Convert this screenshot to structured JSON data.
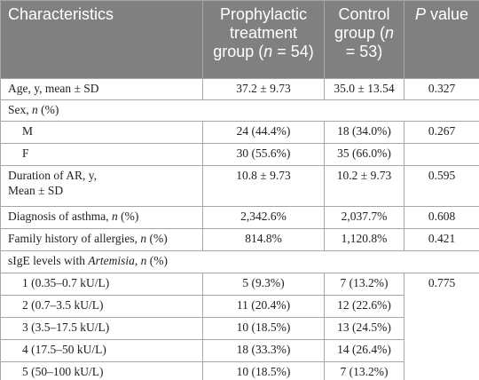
{
  "table": {
    "header": {
      "characteristics": "Characteristics",
      "prophylactic": [
        "Prophylactic treatment group (",
        "n",
        " = 54)"
      ],
      "control": [
        "Control group (",
        "n",
        " = 53)"
      ],
      "p_value": [
        "P",
        " value"
      ]
    },
    "rows": [
      {
        "label": [
          "Age, y, mean ± SD"
        ],
        "prophylactic": "37.2 ± 9.73",
        "control": "35.0 ± 13.54",
        "p": "0.327"
      },
      {
        "label": [
          "Sex, ",
          "n",
          " (%)"
        ]
      },
      {
        "label": [
          "M"
        ],
        "prophylactic": "24 (44.4%)",
        "control": "18 (34.0%)",
        "p": "0.267"
      },
      {
        "label": [
          "F"
        ],
        "prophylactic": "30 (55.6%)",
        "control": "35 (66.0%)"
      },
      {
        "label": [
          "Duration of AR, y,",
          "Mean ± SD"
        ],
        "prophylactic": "10.8 ± 9.73",
        "control": "10.2 ± 9.73",
        "p": "0.595"
      },
      {
        "label": [
          "Diagnosis of asthma, ",
          "n",
          " (%)"
        ],
        "prophylactic": "2,342.6%",
        "control": "2,037.7%",
        "p": "0.608"
      },
      {
        "label": [
          "Family history of allergies, ",
          "n",
          " (%)"
        ],
        "prophylactic": "814.8%",
        "control": "1,120.8%",
        "p": "0.421"
      },
      {
        "label": [
          "sIgE levels with ",
          "Artemisia",
          ", ",
          "n",
          " (%)"
        ]
      },
      {
        "label": [
          "1 (0.35–0.7 kU/L)"
        ],
        "prophylactic": "5 (9.3%)",
        "control": "7 (13.2%)",
        "p": "0.775"
      },
      {
        "label": [
          "2 (0.7–3.5 kU/L)"
        ],
        "prophylactic": "11 (20.4%)",
        "control": "12 (22.6%)"
      },
      {
        "label": [
          "3 (3.5–17.5 kU/L)"
        ],
        "prophylactic": "10 (18.5%)",
        "control": "13 (24.5%)"
      },
      {
        "label": [
          "4 (17.5–50 kU/L)"
        ],
        "prophylactic": "18 (33.3%)",
        "control": "14 (26.4%)"
      },
      {
        "label": [
          "5 (50–100 kU/L)"
        ],
        "prophylactic": "10 (18.5%)",
        "control": "7 (13.2%)"
      }
    ]
  }
}
